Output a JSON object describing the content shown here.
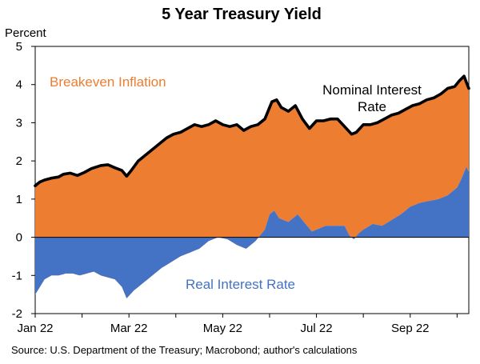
{
  "chart_data": {
    "type": "area",
    "title": "5 Year Treasury Yield",
    "ylabel": "Percent",
    "source": "Source: U.S. Department of the Treasury; Macrobond; author's calculations",
    "ylim": [
      -2,
      5
    ],
    "yticks": [
      "5",
      "4",
      "3",
      "2",
      "1",
      "0",
      "-1",
      "-2"
    ],
    "ytick_values": [
      5,
      4,
      3,
      2,
      1,
      0,
      -1,
      -2
    ],
    "xlim": [
      0,
      9.25
    ],
    "x_tick_labels": [
      "Jan 22",
      "Mar 22",
      "May 22",
      "Jul 22",
      "Sep 22"
    ],
    "x_tick_positions": [
      0,
      2,
      4,
      6,
      8
    ],
    "x_units": "months since Jan 1 2022",
    "colors": {
      "breakeven": "#ED7D31",
      "real": "#4472C4",
      "nominal": "#000000"
    },
    "labels": {
      "breakeven": "Breakeven Inflation",
      "nominal_line1": "Nominal Interest",
      "nominal_line2": "Rate",
      "real": "Real Interest Rate"
    },
    "series": [
      {
        "name": "Nominal Interest Rate",
        "x": [
          0.0,
          0.1,
          0.2,
          0.35,
          0.5,
          0.6,
          0.75,
          0.9,
          1.05,
          1.2,
          1.4,
          1.55,
          1.7,
          1.85,
          1.95,
          2.05,
          2.2,
          2.4,
          2.6,
          2.8,
          2.95,
          3.1,
          3.25,
          3.4,
          3.55,
          3.7,
          3.85,
          4.0,
          4.15,
          4.3,
          4.45,
          4.6,
          4.75,
          4.9,
          5.05,
          5.15,
          5.25,
          5.4,
          5.55,
          5.7,
          5.85,
          6.0,
          6.15,
          6.3,
          6.45,
          6.6,
          6.75,
          6.85,
          7.0,
          7.15,
          7.3,
          7.45,
          7.6,
          7.75,
          7.9,
          8.05,
          8.2,
          8.35,
          8.5,
          8.65,
          8.8,
          8.95,
          9.05,
          9.15,
          9.2,
          9.25
        ],
        "values": [
          1.35,
          1.45,
          1.5,
          1.55,
          1.58,
          1.65,
          1.68,
          1.62,
          1.7,
          1.8,
          1.88,
          1.9,
          1.82,
          1.75,
          1.6,
          1.75,
          2.0,
          2.2,
          2.4,
          2.6,
          2.7,
          2.75,
          2.85,
          2.95,
          2.9,
          2.95,
          3.05,
          2.95,
          2.9,
          2.95,
          2.8,
          2.9,
          2.95,
          3.1,
          3.55,
          3.6,
          3.4,
          3.3,
          3.45,
          3.1,
          2.85,
          3.05,
          3.05,
          3.1,
          3.1,
          2.9,
          2.7,
          2.75,
          2.95,
          2.95,
          3.0,
          3.1,
          3.2,
          3.25,
          3.35,
          3.45,
          3.5,
          3.6,
          3.65,
          3.75,
          3.9,
          3.95,
          4.1,
          4.22,
          4.05,
          3.9
        ]
      },
      {
        "name": "Real Interest Rate",
        "x": [
          0.0,
          0.1,
          0.2,
          0.35,
          0.5,
          0.65,
          0.8,
          0.95,
          1.1,
          1.25,
          1.4,
          1.55,
          1.7,
          1.85,
          1.95,
          2.1,
          2.3,
          2.5,
          2.7,
          2.9,
          3.1,
          3.3,
          3.5,
          3.7,
          3.9,
          4.1,
          4.3,
          4.5,
          4.7,
          4.9,
          5.0,
          5.1,
          5.2,
          5.4,
          5.6,
          5.8,
          5.9,
          6.0,
          6.2,
          6.4,
          6.6,
          6.7,
          6.8,
          6.9,
          7.0,
          7.2,
          7.4,
          7.6,
          7.8,
          8.0,
          8.2,
          8.4,
          8.6,
          8.8,
          9.0,
          9.1,
          9.2,
          9.25
        ],
        "values": [
          -1.5,
          -1.3,
          -1.1,
          -1.0,
          -1.0,
          -0.95,
          -0.95,
          -1.0,
          -0.95,
          -0.9,
          -1.0,
          -1.05,
          -1.1,
          -1.3,
          -1.6,
          -1.4,
          -1.2,
          -1.0,
          -0.8,
          -0.65,
          -0.5,
          -0.4,
          -0.3,
          -0.1,
          0.0,
          -0.05,
          -0.2,
          -0.3,
          -0.1,
          0.2,
          0.6,
          0.7,
          0.5,
          0.4,
          0.6,
          0.3,
          0.15,
          0.2,
          0.3,
          0.3,
          0.3,
          0.05,
          -0.05,
          0.1,
          0.2,
          0.35,
          0.3,
          0.45,
          0.6,
          0.8,
          0.9,
          0.95,
          1.0,
          1.1,
          1.3,
          1.55,
          1.85,
          1.7
        ]
      }
    ]
  }
}
